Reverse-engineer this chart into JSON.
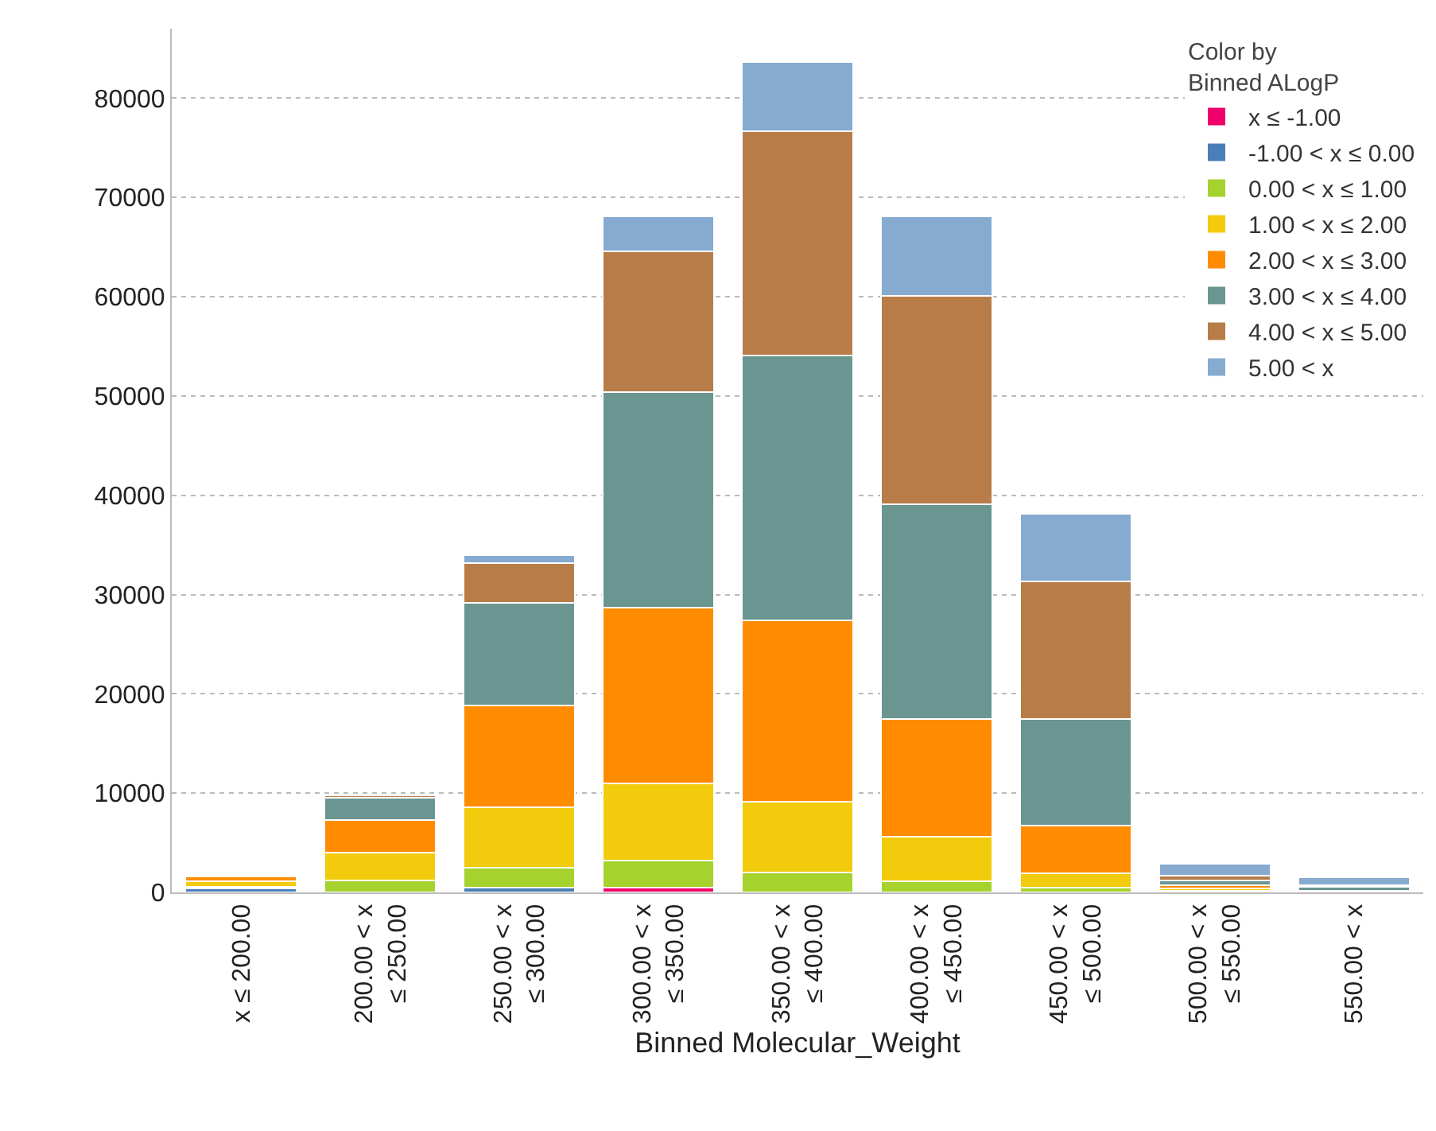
{
  "chart_data": {
    "type": "bar",
    "stacked": true,
    "xlabel": "Binned Molecular_Weight",
    "legend_title": "Color by Binned ALogP",
    "legend": "top right",
    "grid": "y",
    "categories": [
      "x ≤ 200.00",
      "200.00 < x ≤ 250.00",
      "250.00 < x ≤ 300.00",
      "300.00 < x ≤ 350.00",
      "350.00 < x ≤ 400.00",
      "400.00 < x ≤ 450.00",
      "450.00 < x ≤ 500.00",
      "500.00 < x ≤ 550.00",
      "550.00 < x"
    ],
    "ylim": [
      0,
      87000
    ],
    "yticks": [
      0,
      10000,
      20000,
      30000,
      40000,
      50000,
      60000,
      70000,
      80000
    ],
    "series": [
      {
        "name": "x ≤ -1.00",
        "color": "#f0006a",
        "values": [
          null,
          null,
          null,
          500,
          null,
          null,
          null,
          null,
          null
        ]
      },
      {
        "name": "-1.00 < x ≤ 0.00",
        "color": "#4a7eb8",
        "values": [
          400,
          null,
          500,
          null,
          null,
          null,
          null,
          null,
          null
        ]
      },
      {
        "name": "0.00 < x ≤ 1.00",
        "color": "#a5d22c",
        "values": [
          200,
          1200,
          2000,
          2700,
          2000,
          1100,
          500,
          200,
          100
        ]
      },
      {
        "name": "1.00 < x ≤ 2.00",
        "color": "#f2cb0c",
        "values": [
          500,
          2800,
          6100,
          7800,
          7100,
          4500,
          1400,
          200,
          null
        ]
      },
      {
        "name": "2.00 < x ≤ 3.00",
        "color": "#ff8c00",
        "values": [
          500,
          3300,
          10200,
          17700,
          18300,
          11900,
          4800,
          300,
          100
        ]
      },
      {
        "name": "3.00 < x ≤ 4.00",
        "color": "#6a9590",
        "values": [
          null,
          2200,
          10400,
          21700,
          26700,
          21600,
          10800,
          500,
          400
        ]
      },
      {
        "name": "4.00 < x ≤ 5.00",
        "color": "#b87c48",
        "values": [
          null,
          300,
          4000,
          14200,
          22600,
          21000,
          13800,
          500,
          100
        ]
      },
      {
        "name": "5.00 < x",
        "color": "#86aad0",
        "values": [
          null,
          null,
          800,
          3500,
          6900,
          8000,
          6800,
          1200,
          800
        ]
      }
    ]
  }
}
